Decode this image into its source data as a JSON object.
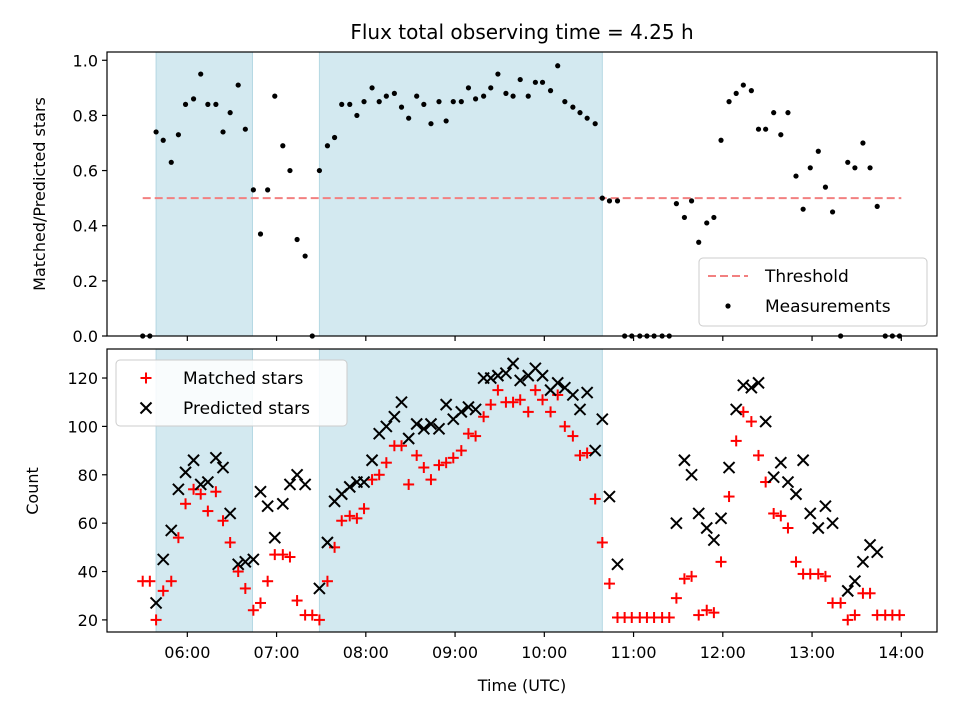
{
  "chart_data": {
    "title": "Flux total observing time = 4.25 h",
    "xlabel": "Time (UTC)",
    "x_ticks": [
      "06:00",
      "07:00",
      "08:00",
      "09:00",
      "10:00",
      "11:00",
      "12:00",
      "13:00",
      "14:00"
    ],
    "x_tick_hours": [
      6,
      7,
      8,
      9,
      10,
      11,
      12,
      13,
      14
    ],
    "xlim_hours": [
      5.1,
      14.4
    ],
    "observing_windows_hours": [
      [
        5.65,
        6.73
      ],
      [
        7.48,
        10.65
      ]
    ],
    "top": {
      "type": "scatter",
      "ylabel": "Matched/Predicted stars",
      "ylim": [
        0,
        1.03
      ],
      "y_ticks": [
        "0.0",
        "0.2",
        "0.4",
        "0.6",
        "0.8",
        "1.0"
      ],
      "threshold": 0.5,
      "threshold_x_hours": [
        5.5,
        14.0
      ],
      "legend": [
        "Threshold",
        "Measurements"
      ],
      "points": [
        [
          5.5,
          0.0
        ],
        [
          5.58,
          0.0
        ],
        [
          5.65,
          0.74
        ],
        [
          5.73,
          0.71
        ],
        [
          5.82,
          0.63
        ],
        [
          5.9,
          0.73
        ],
        [
          5.98,
          0.84
        ],
        [
          6.07,
          0.86
        ],
        [
          6.15,
          0.95
        ],
        [
          6.23,
          0.84
        ],
        [
          6.32,
          0.84
        ],
        [
          6.4,
          0.74
        ],
        [
          6.48,
          0.81
        ],
        [
          6.57,
          0.91
        ],
        [
          6.65,
          0.75
        ],
        [
          6.74,
          0.53
        ],
        [
          6.82,
          0.37
        ],
        [
          6.9,
          0.53
        ],
        [
          6.98,
          0.87
        ],
        [
          7.07,
          0.69
        ],
        [
          7.15,
          0.6
        ],
        [
          7.23,
          0.35
        ],
        [
          7.32,
          0.29
        ],
        [
          7.4,
          0.0
        ],
        [
          7.48,
          0.6
        ],
        [
          7.57,
          0.69
        ],
        [
          7.65,
          0.72
        ],
        [
          7.73,
          0.84
        ],
        [
          7.82,
          0.84
        ],
        [
          7.9,
          0.8
        ],
        [
          7.98,
          0.85
        ],
        [
          8.07,
          0.9
        ],
        [
          8.15,
          0.85
        ],
        [
          8.23,
          0.87
        ],
        [
          8.32,
          0.88
        ],
        [
          8.4,
          0.83
        ],
        [
          8.48,
          0.79
        ],
        [
          8.57,
          0.87
        ],
        [
          8.65,
          0.84
        ],
        [
          8.73,
          0.77
        ],
        [
          8.82,
          0.85
        ],
        [
          8.9,
          0.78
        ],
        [
          8.98,
          0.85
        ],
        [
          9.07,
          0.85
        ],
        [
          9.15,
          0.9
        ],
        [
          9.23,
          0.86
        ],
        [
          9.32,
          0.87
        ],
        [
          9.4,
          0.9
        ],
        [
          9.48,
          0.95
        ],
        [
          9.57,
          0.88
        ],
        [
          9.65,
          0.87
        ],
        [
          9.73,
          0.93
        ],
        [
          9.82,
          0.87
        ],
        [
          9.9,
          0.92
        ],
        [
          9.98,
          0.92
        ],
        [
          10.07,
          0.89
        ],
        [
          10.15,
          0.98
        ],
        [
          10.23,
          0.85
        ],
        [
          10.32,
          0.83
        ],
        [
          10.4,
          0.81
        ],
        [
          10.48,
          0.79
        ],
        [
          10.57,
          0.77
        ],
        [
          10.65,
          0.5
        ],
        [
          10.73,
          0.49
        ],
        [
          10.82,
          0.49
        ],
        [
          10.9,
          0.0
        ],
        [
          10.98,
          0.0
        ],
        [
          11.07,
          0.0
        ],
        [
          11.15,
          0.0
        ],
        [
          11.23,
          0.0
        ],
        [
          11.32,
          0.0
        ],
        [
          11.4,
          0.0
        ],
        [
          11.48,
          0.48
        ],
        [
          11.57,
          0.43
        ],
        [
          11.65,
          0.49
        ],
        [
          11.73,
          0.34
        ],
        [
          11.82,
          0.41
        ],
        [
          11.9,
          0.43
        ],
        [
          11.98,
          0.71
        ],
        [
          12.07,
          0.85
        ],
        [
          12.15,
          0.88
        ],
        [
          12.23,
          0.91
        ],
        [
          12.32,
          0.89
        ],
        [
          12.4,
          0.75
        ],
        [
          12.48,
          0.75
        ],
        [
          12.57,
          0.81
        ],
        [
          12.65,
          0.73
        ],
        [
          12.73,
          0.81
        ],
        [
          12.82,
          0.58
        ],
        [
          12.9,
          0.46
        ],
        [
          12.98,
          0.61
        ],
        [
          13.07,
          0.67
        ],
        [
          13.15,
          0.54
        ],
        [
          13.23,
          0.45
        ],
        [
          13.32,
          0.0
        ],
        [
          13.4,
          0.63
        ],
        [
          13.48,
          0.61
        ],
        [
          13.57,
          0.7
        ],
        [
          13.65,
          0.61
        ],
        [
          13.73,
          0.47
        ],
        [
          13.82,
          0.0
        ],
        [
          13.9,
          0.0
        ],
        [
          13.98,
          0.0
        ]
      ]
    },
    "bottom": {
      "type": "scatter",
      "ylabel": "Count",
      "ylim": [
        15,
        132
      ],
      "y_ticks": [
        "20",
        "40",
        "60",
        "80",
        "100",
        "120"
      ],
      "legend": [
        "Matched stars",
        "Predicted stars"
      ],
      "matched": [
        [
          5.5,
          36
        ],
        [
          5.58,
          36
        ],
        [
          5.65,
          20
        ],
        [
          5.73,
          32
        ],
        [
          5.82,
          36
        ],
        [
          5.9,
          54
        ],
        [
          5.98,
          68
        ],
        [
          6.07,
          74
        ],
        [
          6.15,
          72
        ],
        [
          6.23,
          65
        ],
        [
          6.32,
          73
        ],
        [
          6.4,
          61
        ],
        [
          6.48,
          52
        ],
        [
          6.57,
          40
        ],
        [
          6.65,
          33
        ],
        [
          6.74,
          24
        ],
        [
          6.82,
          27
        ],
        [
          6.9,
          36
        ],
        [
          6.98,
          47
        ],
        [
          7.07,
          47
        ],
        [
          7.15,
          46
        ],
        [
          7.23,
          28
        ],
        [
          7.32,
          22
        ],
        [
          7.4,
          22
        ],
        [
          7.48,
          20
        ],
        [
          7.57,
          36
        ],
        [
          7.65,
          50
        ],
        [
          7.73,
          61
        ],
        [
          7.82,
          63
        ],
        [
          7.9,
          62
        ],
        [
          7.98,
          66
        ],
        [
          8.07,
          78
        ],
        [
          8.15,
          80
        ],
        [
          8.23,
          85
        ],
        [
          8.32,
          92
        ],
        [
          8.4,
          92
        ],
        [
          8.48,
          76
        ],
        [
          8.57,
          88
        ],
        [
          8.65,
          83
        ],
        [
          8.73,
          78
        ],
        [
          8.82,
          84
        ],
        [
          8.9,
          85
        ],
        [
          8.98,
          87
        ],
        [
          9.07,
          90
        ],
        [
          9.15,
          97
        ],
        [
          9.23,
          96
        ],
        [
          9.32,
          104
        ],
        [
          9.4,
          109
        ],
        [
          9.48,
          115
        ],
        [
          9.57,
          110
        ],
        [
          9.65,
          110
        ],
        [
          9.73,
          111
        ],
        [
          9.82,
          106
        ],
        [
          9.9,
          115
        ],
        [
          9.98,
          111
        ],
        [
          10.07,
          106
        ],
        [
          10.15,
          113
        ],
        [
          10.23,
          100
        ],
        [
          10.32,
          96
        ],
        [
          10.4,
          88
        ],
        [
          10.48,
          89
        ],
        [
          10.57,
          70
        ],
        [
          10.65,
          52
        ],
        [
          10.73,
          35
        ],
        [
          10.82,
          21
        ],
        [
          10.9,
          21
        ],
        [
          10.98,
          21
        ],
        [
          11.07,
          21
        ],
        [
          11.15,
          21
        ],
        [
          11.23,
          21
        ],
        [
          11.32,
          21
        ],
        [
          11.4,
          21
        ],
        [
          11.48,
          29
        ],
        [
          11.57,
          37
        ],
        [
          11.65,
          38
        ],
        [
          11.73,
          22
        ],
        [
          11.82,
          24
        ],
        [
          11.9,
          23
        ],
        [
          11.98,
          44
        ],
        [
          12.07,
          71
        ],
        [
          12.15,
          94
        ],
        [
          12.23,
          106
        ],
        [
          12.32,
          102
        ],
        [
          12.4,
          88
        ],
        [
          12.48,
          77
        ],
        [
          12.57,
          64
        ],
        [
          12.65,
          63
        ],
        [
          12.73,
          58
        ],
        [
          12.82,
          44
        ],
        [
          12.9,
          39
        ],
        [
          12.98,
          39
        ],
        [
          13.07,
          39
        ],
        [
          13.15,
          38
        ],
        [
          13.23,
          27
        ],
        [
          13.32,
          27
        ],
        [
          13.4,
          20
        ],
        [
          13.48,
          22
        ],
        [
          13.57,
          31
        ],
        [
          13.65,
          31
        ],
        [
          13.73,
          22
        ],
        [
          13.82,
          22
        ],
        [
          13.9,
          22
        ],
        [
          13.98,
          22
        ]
      ],
      "predicted": [
        [
          5.65,
          27
        ],
        [
          5.73,
          45
        ],
        [
          5.82,
          57
        ],
        [
          5.9,
          74
        ],
        [
          5.98,
          81
        ],
        [
          6.07,
          86
        ],
        [
          6.15,
          76
        ],
        [
          6.23,
          77
        ],
        [
          6.32,
          87
        ],
        [
          6.4,
          83
        ],
        [
          6.48,
          64
        ],
        [
          6.57,
          43
        ],
        [
          6.65,
          44
        ],
        [
          6.74,
          45
        ],
        [
          6.82,
          73
        ],
        [
          6.9,
          67
        ],
        [
          6.98,
          54
        ],
        [
          7.07,
          68
        ],
        [
          7.15,
          76
        ],
        [
          7.23,
          80
        ],
        [
          7.32,
          76
        ],
        [
          7.48,
          33
        ],
        [
          7.57,
          52
        ],
        [
          7.65,
          69
        ],
        [
          7.73,
          72
        ],
        [
          7.82,
          75
        ],
        [
          7.9,
          77
        ],
        [
          7.98,
          77
        ],
        [
          8.07,
          86
        ],
        [
          8.15,
          97
        ],
        [
          8.23,
          100
        ],
        [
          8.32,
          104
        ],
        [
          8.4,
          110
        ],
        [
          8.48,
          95
        ],
        [
          8.57,
          101
        ],
        [
          8.65,
          99
        ],
        [
          8.73,
          101
        ],
        [
          8.82,
          99
        ],
        [
          8.9,
          109
        ],
        [
          8.98,
          103
        ],
        [
          9.07,
          106
        ],
        [
          9.15,
          108
        ],
        [
          9.23,
          107
        ],
        [
          9.32,
          120
        ],
        [
          9.4,
          120
        ],
        [
          9.48,
          121
        ],
        [
          9.57,
          122
        ],
        [
          9.65,
          126
        ],
        [
          9.73,
          119
        ],
        [
          9.82,
          121
        ],
        [
          9.9,
          124
        ],
        [
          9.98,
          121
        ],
        [
          10.07,
          115
        ],
        [
          10.15,
          118
        ],
        [
          10.23,
          116
        ],
        [
          10.32,
          113
        ],
        [
          10.4,
          107
        ],
        [
          10.48,
          114
        ],
        [
          10.57,
          90
        ],
        [
          10.65,
          103
        ],
        [
          10.73,
          71
        ],
        [
          10.82,
          43
        ],
        [
          11.48,
          60
        ],
        [
          11.57,
          86
        ],
        [
          11.65,
          80
        ],
        [
          11.73,
          64
        ],
        [
          11.82,
          58
        ],
        [
          11.9,
          53
        ],
        [
          11.98,
          62
        ],
        [
          12.07,
          83
        ],
        [
          12.15,
          107
        ],
        [
          12.23,
          117
        ],
        [
          12.32,
          116
        ],
        [
          12.4,
          118
        ],
        [
          12.48,
          102
        ],
        [
          12.57,
          79
        ],
        [
          12.65,
          85
        ],
        [
          12.73,
          77
        ],
        [
          12.82,
          72
        ],
        [
          12.9,
          86
        ],
        [
          12.98,
          64
        ],
        [
          13.07,
          58
        ],
        [
          13.15,
          67
        ],
        [
          13.23,
          60
        ],
        [
          13.4,
          32
        ],
        [
          13.48,
          36
        ],
        [
          13.57,
          44
        ],
        [
          13.65,
          51
        ],
        [
          13.73,
          48
        ]
      ]
    },
    "colors": {
      "shade": "#d3e9f0",
      "shade_edge": "#b5d8e3",
      "threshold": "#f28080",
      "matched": "#ff0000",
      "predicted": "#000000"
    }
  }
}
